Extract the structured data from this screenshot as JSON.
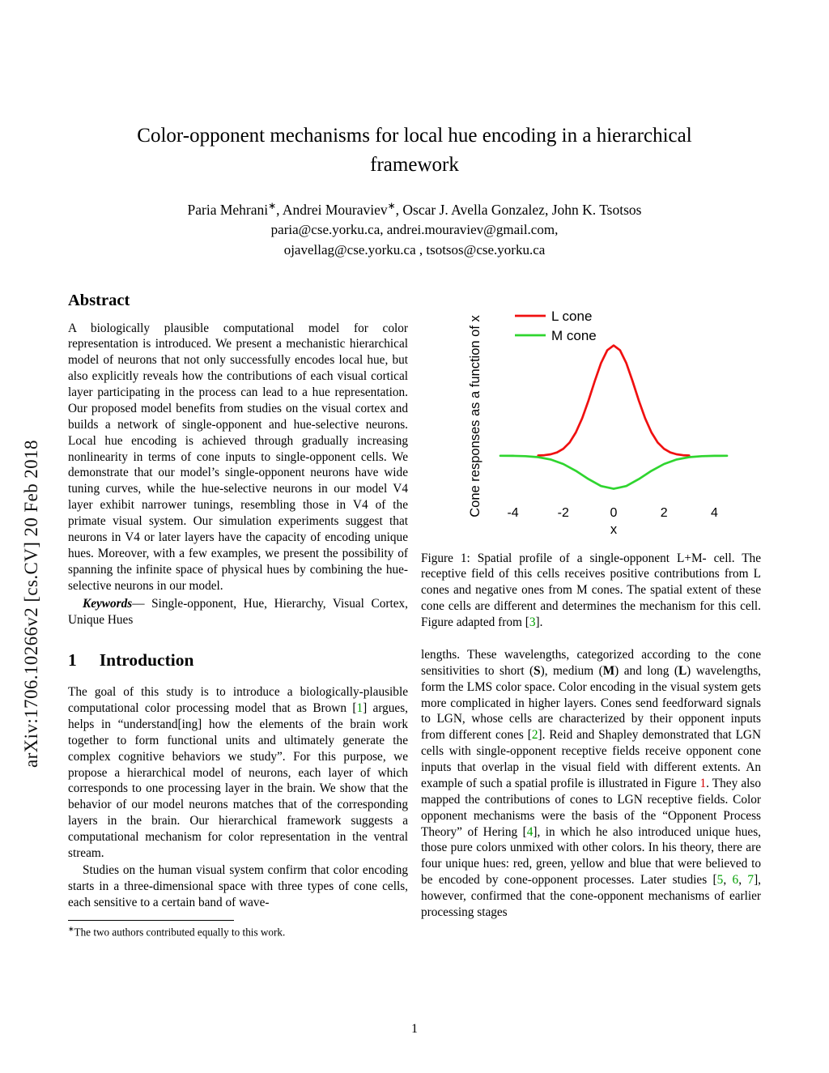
{
  "arxiv_banner": "arXiv:1706.10266v2  [cs.CV]  20 Feb 2018",
  "title": "Color-opponent mechanisms for local hue encoding in a hierarchical framework",
  "authors_rich": [
    {
      "t": "Paria Mehrani"
    },
    {
      "t": "∗",
      "c": "sup"
    },
    {
      "t": ", Andrei Mouraviev"
    },
    {
      "t": "∗",
      "c": "sup"
    },
    {
      "t": ", Oscar J. Avella Gonzalez, John K. Tsotsos"
    }
  ],
  "emails_line1": "paria@cse.yorku.ca, andrei.mouraviev@gmail.com,",
  "emails_line2": "ojavellag@cse.yorku.ca , tsotsos@cse.yorku.ca",
  "abstract": {
    "heading": "Abstract",
    "text": "A biologically plausible computational model for color representation is introduced. We present a mechanistic hierarchical model of neurons that not only successfully encodes local hue, but also explicitly reveals how the contributions of each visual cortical layer participating in the process can lead to a hue representation. Our proposed model benefits from studies on the visual cortex and builds a network of single-opponent and hue-selective neurons. Local hue encoding is achieved through gradually increasing nonlinearity in terms of cone inputs to single-opponent cells. We demonstrate that our model’s single-opponent neurons have wide tuning curves, while the hue-selective neurons in our model V4 layer exhibit narrower tunings, resembling those in V4 of the primate visual system. Our simulation experiments suggest that neurons in V4 or later layers have the capacity of encoding unique hues. Moreover, with a few examples, we present the possibility of spanning the infinite space of physical hues by combining the hue-selective neurons in our model."
  },
  "keywords_rich": [
    {
      "t": "Keywords",
      "c": "bi"
    },
    {
      "t": "— Single-opponent, Hue, Hierarchy, Visual Cortex, Unique Hues"
    }
  ],
  "section1": {
    "number": "1",
    "title": "Introduction"
  },
  "intro_p1_rich": [
    {
      "t": "The goal of this study is to introduce a biologically-plausible computational color processing model that as Brown ["
    },
    {
      "t": "1",
      "c": "green"
    },
    {
      "t": "] argues, helps in “understand[ing] how the elements of the brain work together to form functional units and ultimately generate the complex cognitive behaviors we study”. For this purpose, we propose a hierarchical model of neurons, each layer of which corresponds to one processing layer in the brain. We show that the behavior of our model neurons matches that of the corresponding layers in the brain. Our hierarchical framework suggests a computational mechanism for color representation in the ventral stream."
    }
  ],
  "intro_p2": "Studies on the human visual system confirm that color encoding starts in a three-dimensional space with three types of cone cells, each sensitive to a certain band of wave-",
  "footnote_rich": [
    {
      "t": "∗",
      "c": "sup"
    },
    {
      "t": "The two authors contributed equally to this work."
    }
  ],
  "figure_caption_rich": [
    {
      "t": "Figure 1: Spatial profile of a single-opponent L+M- cell. The receptive field of this cells receives positive contributions from L cones and negative ones from M cones. The spatial extent of these cone cells are different and determines the mechanism for this cell. Figure adapted from ["
    },
    {
      "t": "3",
      "c": "green"
    },
    {
      "t": "]."
    }
  ],
  "right_col_rich": [
    {
      "t": "lengths. These wavelengths, categorized according to the cone sensitivities to short ("
    },
    {
      "t": "S",
      "c": "b"
    },
    {
      "t": "), medium ("
    },
    {
      "t": "M",
      "c": "b"
    },
    {
      "t": ") and long ("
    },
    {
      "t": "L",
      "c": "b"
    },
    {
      "t": ") wavelengths, form the LMS color space. Color encoding in the visual system gets more complicated in higher layers. Cones send feedforward signals to LGN, whose cells are characterized by their opponent inputs from different cones ["
    },
    {
      "t": "2",
      "c": "green"
    },
    {
      "t": "]. Reid and Shapley demonstrated that LGN cells with single-opponent receptive fields receive opponent cone inputs that overlap in the visual field with different extents. An example of such a spatial profile is illustrated in Figure "
    },
    {
      "t": "1",
      "c": "red"
    },
    {
      "t": ". They also mapped the contributions of cones to LGN receptive fields. Color opponent mechanisms were the basis of the “Opponent Process Theory” of Hering ["
    },
    {
      "t": "4",
      "c": "green"
    },
    {
      "t": "], in which he also introduced unique hues, those pure colors unmixed with other colors. In his theory, there are four unique hues: red, green, yellow and blue that were believed to be encoded by cone-opponent processes. Later studies ["
    },
    {
      "t": "5",
      "c": "green"
    },
    {
      "t": ", "
    },
    {
      "t": "6",
      "c": "green"
    },
    {
      "t": ", "
    },
    {
      "t": "7",
      "c": "green"
    },
    {
      "t": "], however, confirmed that the cone-opponent mechanisms of earlier processing stages"
    }
  ],
  "page_number": "1",
  "chart_data": {
    "type": "line",
    "title": "",
    "xlabel": "x",
    "ylabel": "Cone responses as a function of x",
    "xlim": [
      -4.5,
      4.5
    ],
    "ylim": [
      -0.45,
      1.35
    ],
    "x_ticks": [
      -4,
      -2,
      0,
      2,
      4
    ],
    "grid": false,
    "legend_position": "top-left",
    "series": [
      {
        "name": "L cone",
        "color": "#f01010",
        "x": [
          -3,
          -2.75,
          -2.5,
          -2.25,
          -2,
          -1.75,
          -1.5,
          -1.25,
          -1,
          -0.75,
          -0.5,
          -0.25,
          0,
          0.25,
          0.5,
          0.75,
          1,
          1.25,
          1.5,
          1.75,
          2,
          2.25,
          2.5,
          2.75,
          3
        ],
        "y": [
          0.002,
          0.005,
          0.013,
          0.03,
          0.063,
          0.12,
          0.211,
          0.339,
          0.5,
          0.678,
          0.841,
          0.958,
          1.0,
          0.958,
          0.841,
          0.678,
          0.5,
          0.339,
          0.211,
          0.12,
          0.063,
          0.03,
          0.013,
          0.005,
          0.002
        ]
      },
      {
        "name": "M cone",
        "color": "#2fd52f",
        "x": [
          -4.5,
          -4,
          -3.5,
          -3,
          -2.5,
          -2,
          -1.5,
          -1,
          -0.5,
          0,
          0.5,
          1,
          1.5,
          2,
          2.5,
          3,
          3.5,
          4,
          4.5
        ],
        "y": [
          0,
          -0.001,
          -0.004,
          -0.013,
          -0.034,
          -0.075,
          -0.137,
          -0.212,
          -0.275,
          -0.3,
          -0.275,
          -0.212,
          -0.137,
          -0.075,
          -0.034,
          -0.013,
          -0.004,
          -0.001,
          0
        ]
      }
    ]
  }
}
